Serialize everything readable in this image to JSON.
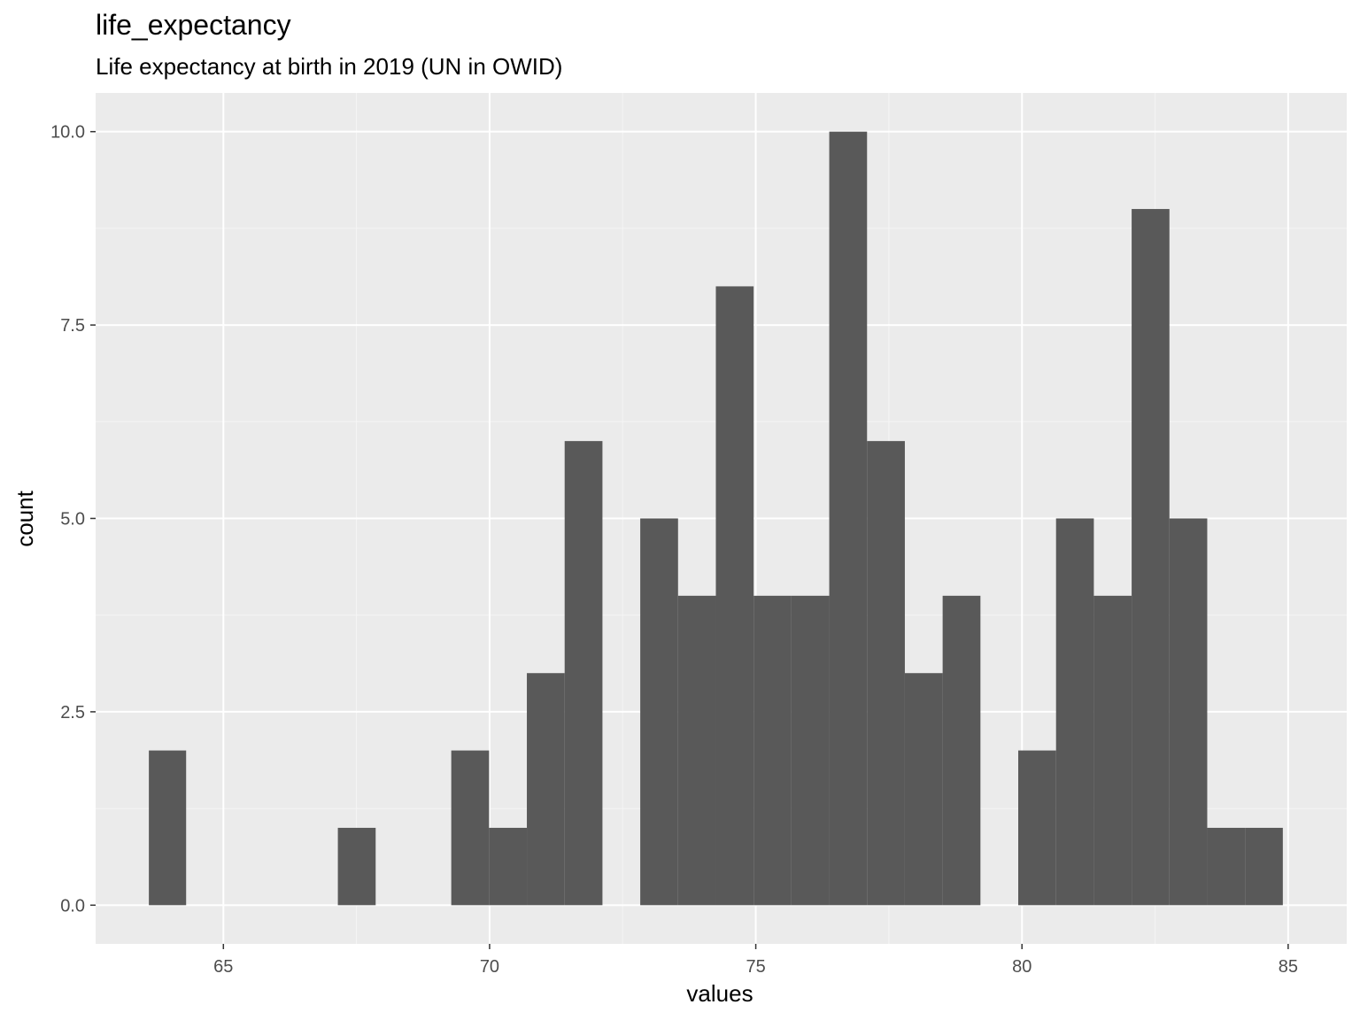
{
  "chart_data": {
    "type": "bar",
    "title": "life_expectancy",
    "subtitle": "Life expectancy at birth in 2019 (UN in OWID)",
    "xlabel": "values",
    "ylabel": "count",
    "xlim": [
      62.6,
      86.1
    ],
    "ylim": [
      -0.5,
      10.5
    ],
    "x_ticks": [
      65,
      70,
      75,
      80,
      85
    ],
    "x_tick_labels": [
      "65",
      "70",
      "75",
      "80",
      "85"
    ],
    "y_ticks": [
      0,
      2.5,
      5,
      7.5,
      10
    ],
    "y_tick_labels": [
      "0.0",
      "2.5",
      "5.0",
      "7.5",
      "10.0"
    ],
    "grid": true,
    "bin_width": 0.71,
    "bins": [
      {
        "x_start": 63.6,
        "x_end": 64.3,
        "count": 2
      },
      {
        "x_start": 67.15,
        "x_end": 67.86,
        "count": 1
      },
      {
        "x_start": 69.28,
        "x_end": 69.99,
        "count": 2
      },
      {
        "x_start": 69.99,
        "x_end": 70.7,
        "count": 1
      },
      {
        "x_start": 70.7,
        "x_end": 71.41,
        "count": 3
      },
      {
        "x_start": 71.41,
        "x_end": 72.12,
        "count": 6
      },
      {
        "x_start": 72.83,
        "x_end": 73.54,
        "count": 5
      },
      {
        "x_start": 73.54,
        "x_end": 74.25,
        "count": 4
      },
      {
        "x_start": 74.25,
        "x_end": 74.96,
        "count": 8
      },
      {
        "x_start": 74.96,
        "x_end": 75.67,
        "count": 4
      },
      {
        "x_start": 75.67,
        "x_end": 76.38,
        "count": 4
      },
      {
        "x_start": 76.38,
        "x_end": 77.09,
        "count": 10
      },
      {
        "x_start": 77.09,
        "x_end": 77.8,
        "count": 6
      },
      {
        "x_start": 77.8,
        "x_end": 78.51,
        "count": 3
      },
      {
        "x_start": 78.51,
        "x_end": 79.22,
        "count": 4
      },
      {
        "x_start": 79.93,
        "x_end": 80.64,
        "count": 2
      },
      {
        "x_start": 80.64,
        "x_end": 81.35,
        "count": 5
      },
      {
        "x_start": 81.35,
        "x_end": 82.06,
        "count": 4
      },
      {
        "x_start": 82.06,
        "x_end": 82.77,
        "count": 9
      },
      {
        "x_start": 82.77,
        "x_end": 83.48,
        "count": 5
      },
      {
        "x_start": 83.48,
        "x_end": 84.19,
        "count": 1
      },
      {
        "x_start": 84.19,
        "x_end": 84.9,
        "count": 1
      }
    ],
    "colors": {
      "panel_background": "#ebebeb",
      "grid_major": "#ffffff",
      "grid_minor": "#f5f5f5",
      "bar_fill": "#595959",
      "tick_text": "#4d4d4d",
      "tick_mark": "#333333"
    }
  }
}
